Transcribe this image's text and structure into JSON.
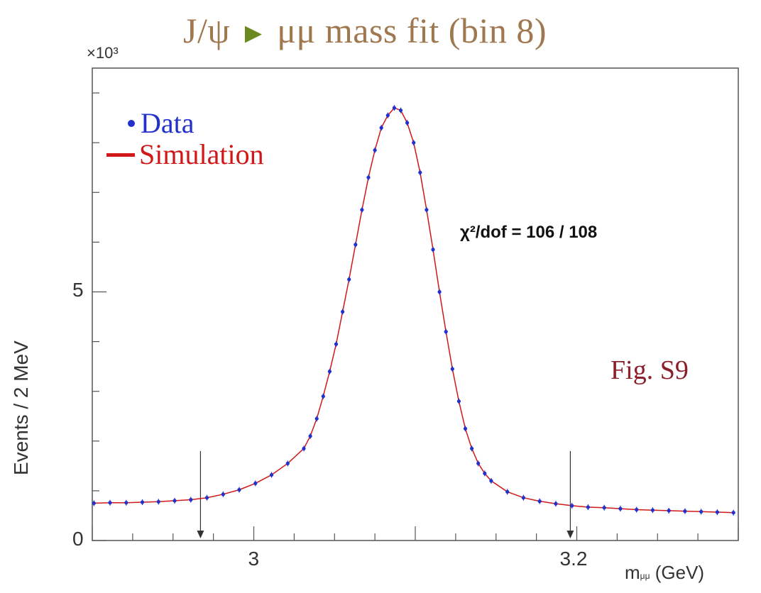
{
  "title": {
    "head": "J/ψ",
    "arrow": "►",
    "rest": "μμ mass fit (bin 8)"
  },
  "colors": {
    "data": "#2230cc",
    "simulation": "#d01818",
    "title": "#a07850",
    "fig_note": "#8b1f2a"
  },
  "annotations": {
    "chi2": "χ²/dof = 106 / 108",
    "fig_note": "Fig. S9"
  },
  "chart_data": {
    "type": "scatter",
    "ylabel": "Events / 2 MeV",
    "y_multiplier": "×10³",
    "xlabel_main": "m",
    "xlabel_sub": "μμ",
    "xlabel_unit": " (GeV)",
    "xlim": [
      2.9,
      3.3
    ],
    "ylim": [
      0,
      9.5
    ],
    "x_ticks": [
      {
        "value": 3.0,
        "label": "3"
      },
      {
        "value": 3.2,
        "label": "3.2"
      }
    ],
    "y_ticks": [
      {
        "value": 0,
        "label": "0"
      },
      {
        "value": 5,
        "label": "5"
      }
    ],
    "fit_window": [
      2.967,
      3.196
    ],
    "legend": {
      "data": "Data",
      "simulation": "Simulation"
    },
    "series": [
      {
        "name": "Data",
        "x": [
          2.901,
          2.911,
          2.921,
          2.931,
          2.941,
          2.951,
          2.961,
          2.971,
          2.981,
          2.991,
          3.001,
          3.011,
          3.021,
          3.031,
          3.035,
          3.039,
          3.043,
          3.047,
          3.051,
          3.055,
          3.059,
          3.063,
          3.067,
          3.071,
          3.075,
          3.079,
          3.083,
          3.087,
          3.091,
          3.095,
          3.099,
          3.103,
          3.107,
          3.111,
          3.115,
          3.119,
          3.123,
          3.127,
          3.131,
          3.135,
          3.139,
          3.143,
          3.147,
          3.157,
          3.167,
          3.177,
          3.187,
          3.197,
          3.207,
          3.217,
          3.227,
          3.237,
          3.247,
          3.257,
          3.267,
          3.277,
          3.287,
          3.297
        ],
        "y": [
          0.75,
          0.76,
          0.76,
          0.77,
          0.78,
          0.8,
          0.82,
          0.86,
          0.93,
          1.02,
          1.15,
          1.32,
          1.55,
          1.85,
          2.1,
          2.45,
          2.9,
          3.4,
          3.95,
          4.6,
          5.25,
          5.95,
          6.65,
          7.3,
          7.85,
          8.3,
          8.55,
          8.7,
          8.65,
          8.4,
          8.0,
          7.4,
          6.65,
          5.85,
          5.0,
          4.2,
          3.45,
          2.8,
          2.25,
          1.85,
          1.55,
          1.35,
          1.2,
          0.98,
          0.86,
          0.79,
          0.74,
          0.7,
          0.67,
          0.66,
          0.64,
          0.62,
          0.61,
          0.6,
          0.59,
          0.58,
          0.57,
          0.56
        ]
      },
      {
        "name": "Simulation",
        "x": [
          2.901,
          2.911,
          2.921,
          2.931,
          2.941,
          2.951,
          2.961,
          2.971,
          2.981,
          2.991,
          3.001,
          3.011,
          3.021,
          3.031,
          3.035,
          3.039,
          3.043,
          3.047,
          3.051,
          3.055,
          3.059,
          3.063,
          3.067,
          3.071,
          3.075,
          3.079,
          3.083,
          3.087,
          3.091,
          3.095,
          3.099,
          3.103,
          3.107,
          3.111,
          3.115,
          3.119,
          3.123,
          3.127,
          3.131,
          3.135,
          3.139,
          3.143,
          3.147,
          3.157,
          3.167,
          3.177,
          3.187,
          3.197,
          3.207,
          3.217,
          3.227,
          3.237,
          3.247,
          3.257,
          3.267,
          3.277,
          3.287,
          3.297
        ],
        "y": [
          0.75,
          0.76,
          0.76,
          0.77,
          0.78,
          0.8,
          0.82,
          0.86,
          0.93,
          1.02,
          1.15,
          1.32,
          1.55,
          1.85,
          2.1,
          2.45,
          2.9,
          3.4,
          3.95,
          4.6,
          5.25,
          5.95,
          6.65,
          7.3,
          7.85,
          8.3,
          8.55,
          8.7,
          8.65,
          8.4,
          8.0,
          7.4,
          6.65,
          5.85,
          5.0,
          4.2,
          3.45,
          2.8,
          2.25,
          1.85,
          1.55,
          1.35,
          1.2,
          0.98,
          0.86,
          0.79,
          0.74,
          0.7,
          0.67,
          0.66,
          0.64,
          0.62,
          0.61,
          0.6,
          0.59,
          0.58,
          0.57,
          0.56
        ]
      }
    ]
  }
}
